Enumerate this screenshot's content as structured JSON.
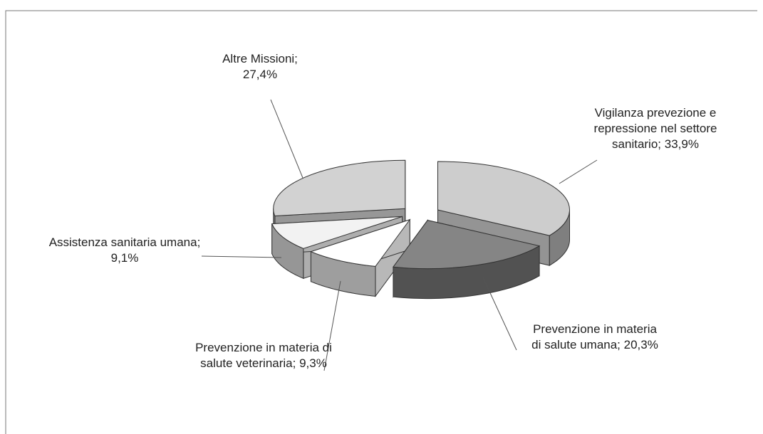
{
  "chart_data": {
    "type": "pie",
    "categories": [
      "Vigilanza prevezione e repressione nel settore sanitario;",
      "Prevenzione in materia di salute umana;",
      "Prevenzione in materia di salute veterinaria;",
      "Assistenza sanitaria umana;",
      "Altre Missioni;"
    ],
    "values": [
      33.9,
      20.3,
      9.3,
      9.1,
      27.4
    ],
    "value_labels": [
      "33,9%",
      "20,3%",
      "9,3%",
      "9,1%",
      "27,4%"
    ],
    "colors": [
      "#cdcdcd",
      "#858585",
      "#ffffff",
      "#f2f2f2",
      "#d2d2d2"
    ]
  }
}
